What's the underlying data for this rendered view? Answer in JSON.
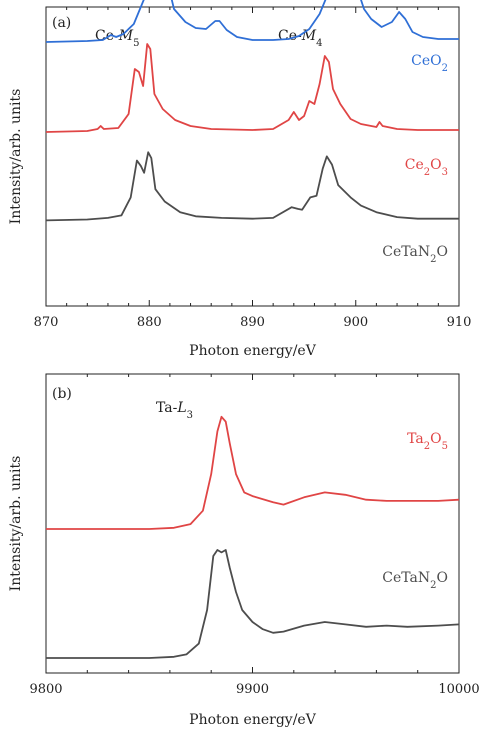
{
  "chart_data": [
    {
      "type": "line",
      "panel_label": "(a)",
      "xlabel": "Photon energy/eV",
      "ylabel": "Intensity/arb. units",
      "xlim": [
        870,
        910
      ],
      "xticks": [
        "870",
        "880",
        "890",
        "900",
        "910"
      ],
      "y_ticks_shown": false,
      "grid": false,
      "annotations": [
        {
          "text": "Ce-M",
          "sub": "5",
          "x": 880.2
        },
        {
          "text": "Ce-M",
          "sub": "4",
          "x": 897.5
        }
      ],
      "series": [
        {
          "name": "CeO2",
          "name_main": "CeO",
          "name_sub": "2",
          "color": "#2f6fd6",
          "offset": 2.0,
          "points": [
            [
              870,
              0.02
            ],
            [
              874,
              0.03
            ],
            [
              875.5,
              0.04
            ],
            [
              876.3,
              0.09
            ],
            [
              876.8,
              0.07
            ],
            [
              877.5,
              0.1
            ],
            [
              878.5,
              0.2
            ],
            [
              879.5,
              0.45
            ],
            [
              880.3,
              0.8
            ],
            [
              880.8,
              0.95
            ],
            [
              881.2,
              0.9
            ],
            [
              881.7,
              0.65
            ],
            [
              882.4,
              0.35
            ],
            [
              883.5,
              0.22
            ],
            [
              884.5,
              0.16
            ],
            [
              885.5,
              0.15
            ],
            [
              886.4,
              0.23
            ],
            [
              886.8,
              0.23
            ],
            [
              887.5,
              0.14
            ],
            [
              888.5,
              0.07
            ],
            [
              890,
              0.04
            ],
            [
              892,
              0.04
            ],
            [
              893.5,
              0.05
            ],
            [
              894.5,
              0.08
            ],
            [
              895.5,
              0.15
            ],
            [
              896.5,
              0.3
            ],
            [
              897.5,
              0.55
            ],
            [
              898.3,
              0.85
            ],
            [
              898.8,
              0.95
            ],
            [
              899.3,
              0.9
            ],
            [
              900,
              0.6
            ],
            [
              900.8,
              0.35
            ],
            [
              901.5,
              0.25
            ],
            [
              902.5,
              0.17
            ],
            [
              903.5,
              0.22
            ],
            [
              904.2,
              0.32
            ],
            [
              904.8,
              0.25
            ],
            [
              905.5,
              0.12
            ],
            [
              906.5,
              0.07
            ],
            [
              908,
              0.05
            ],
            [
              910,
              0.05
            ]
          ]
        },
        {
          "name": "Ce2O3",
          "name_main": "Ce",
          "name_sub": "2",
          "name_main2": "O",
          "name_sub2": "3",
          "color": "#e04545",
          "offset": 1.0,
          "points": [
            [
              870,
              0.02
            ],
            [
              874,
              0.03
            ],
            [
              875,
              0.05
            ],
            [
              875.3,
              0.08
            ],
            [
              875.6,
              0.05
            ],
            [
              877,
              0.06
            ],
            [
              878,
              0.2
            ],
            [
              878.6,
              0.65
            ],
            [
              879,
              0.62
            ],
            [
              879.4,
              0.48
            ],
            [
              879.8,
              0.9
            ],
            [
              880.1,
              0.85
            ],
            [
              880.5,
              0.4
            ],
            [
              881.3,
              0.25
            ],
            [
              882.5,
              0.14
            ],
            [
              884,
              0.08
            ],
            [
              886,
              0.05
            ],
            [
              890,
              0.04
            ],
            [
              892,
              0.05
            ],
            [
              893.5,
              0.14
            ],
            [
              894,
              0.22
            ],
            [
              894.5,
              0.14
            ],
            [
              895,
              0.18
            ],
            [
              895.5,
              0.33
            ],
            [
              896,
              0.3
            ],
            [
              896.5,
              0.5
            ],
            [
              897,
              0.78
            ],
            [
              897.4,
              0.72
            ],
            [
              897.8,
              0.45
            ],
            [
              898.5,
              0.3
            ],
            [
              899.5,
              0.15
            ],
            [
              900.5,
              0.1
            ],
            [
              902,
              0.07
            ],
            [
              902.3,
              0.12
            ],
            [
              902.6,
              0.08
            ],
            [
              904,
              0.05
            ],
            [
              906,
              0.04
            ],
            [
              910,
              0.04
            ]
          ]
        },
        {
          "name": "CeTaN2O",
          "name_main": "CeTaN",
          "name_sub": "2",
          "name_main2": "O",
          "color": "#4d4d4d",
          "offset": 0.0,
          "points": [
            [
              870,
              0.02
            ],
            [
              874,
              0.03
            ],
            [
              876,
              0.05
            ],
            [
              877.3,
              0.08
            ],
            [
              878.2,
              0.3
            ],
            [
              878.8,
              0.75
            ],
            [
              879.2,
              0.68
            ],
            [
              879.5,
              0.6
            ],
            [
              879.9,
              0.85
            ],
            [
              880.2,
              0.78
            ],
            [
              880.6,
              0.4
            ],
            [
              881.5,
              0.25
            ],
            [
              883,
              0.12
            ],
            [
              884.5,
              0.07
            ],
            [
              887,
              0.05
            ],
            [
              890,
              0.04
            ],
            [
              892,
              0.05
            ],
            [
              893.8,
              0.18
            ],
            [
              894.4,
              0.16
            ],
            [
              894.8,
              0.15
            ],
            [
              895.6,
              0.3
            ],
            [
              896.2,
              0.32
            ],
            [
              896.8,
              0.65
            ],
            [
              897.2,
              0.8
            ],
            [
              897.7,
              0.7
            ],
            [
              898.3,
              0.45
            ],
            [
              899.5,
              0.3
            ],
            [
              900.5,
              0.2
            ],
            [
              902,
              0.12
            ],
            [
              904,
              0.06
            ],
            [
              906,
              0.04
            ],
            [
              910,
              0.04
            ]
          ]
        }
      ]
    },
    {
      "type": "line",
      "panel_label": "(b)",
      "xlabel": "Photon energy/eV",
      "ylabel": "Intensity/arb. units",
      "xlim": [
        9800,
        10000
      ],
      "xticks": [
        "9800",
        "9900",
        "10000"
      ],
      "y_ticks_shown": false,
      "grid": false,
      "annotations": [
        {
          "text": "Ta-L",
          "sub": "3",
          "x": 9875
        }
      ],
      "series": [
        {
          "name": "Ta2O5",
          "name_main": "Ta",
          "name_sub": "2",
          "name_main2": "O",
          "name_sub2": "5",
          "color": "#e04545",
          "offset": 1.0,
          "points": [
            [
              9800,
              0.0
            ],
            [
              9850,
              0.0
            ],
            [
              9862,
              0.01
            ],
            [
              9870,
              0.04
            ],
            [
              9876,
              0.15
            ],
            [
              9880,
              0.45
            ],
            [
              9883,
              0.8
            ],
            [
              9885,
              0.92
            ],
            [
              9887,
              0.88
            ],
            [
              9889,
              0.7
            ],
            [
              9892,
              0.45
            ],
            [
              9896,
              0.3
            ],
            [
              9900,
              0.27
            ],
            [
              9910,
              0.22
            ],
            [
              9915,
              0.2
            ],
            [
              9925,
              0.26
            ],
            [
              9935,
              0.3
            ],
            [
              9945,
              0.28
            ],
            [
              9955,
              0.24
            ],
            [
              9965,
              0.23
            ],
            [
              9975,
              0.23
            ],
            [
              9990,
              0.23
            ],
            [
              10000,
              0.24
            ]
          ]
        },
        {
          "name": "CeTaN2O",
          "name_main": "CeTaN",
          "name_sub": "2",
          "name_main2": "O",
          "color": "#4d4d4d",
          "offset": 0.0,
          "points": [
            [
              9800,
              0.0
            ],
            [
              9850,
              0.0
            ],
            [
              9862,
              0.01
            ],
            [
              9868,
              0.03
            ],
            [
              9874,
              0.12
            ],
            [
              9878,
              0.4
            ],
            [
              9881,
              0.85
            ],
            [
              9883,
              0.9
            ],
            [
              9885,
              0.88
            ],
            [
              9887,
              0.9
            ],
            [
              9889,
              0.75
            ],
            [
              9892,
              0.55
            ],
            [
              9895,
              0.4
            ],
            [
              9900,
              0.3
            ],
            [
              9905,
              0.24
            ],
            [
              9910,
              0.21
            ],
            [
              9915,
              0.22
            ],
            [
              9925,
              0.27
            ],
            [
              9935,
              0.3
            ],
            [
              9945,
              0.28
            ],
            [
              9955,
              0.26
            ],
            [
              9965,
              0.27
            ],
            [
              9975,
              0.26
            ],
            [
              9990,
              0.27
            ],
            [
              10000,
              0.28
            ]
          ]
        }
      ]
    }
  ]
}
